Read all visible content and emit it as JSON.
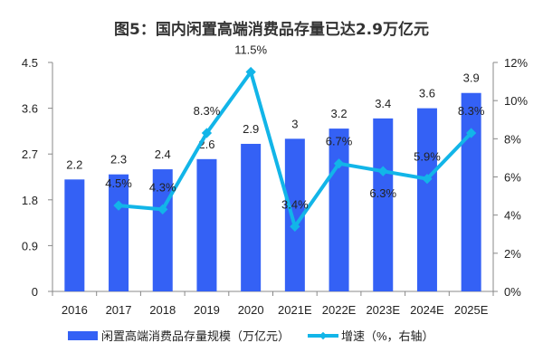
{
  "chart_data": {
    "type": "bar+line",
    "title": "图5：国内闲置高端消费品存量已达2.9万亿元",
    "categories": [
      "2016",
      "2017",
      "2018",
      "2019",
      "2020",
      "2021E",
      "2022E",
      "2023E",
      "2024E",
      "2025E"
    ],
    "series": [
      {
        "name": "闲置高端消费品存量规模（万亿元）",
        "type": "bar",
        "axis": "left",
        "color": "#3461f5",
        "values": [
          2.2,
          2.3,
          2.4,
          2.6,
          2.9,
          3,
          3.2,
          3.4,
          3.6,
          3.9
        ],
        "labels": [
          "2.2",
          "2.3",
          "2.4",
          "2.6",
          "2.9",
          "3",
          "3.2",
          "3.4",
          "3.6",
          "3.9"
        ]
      },
      {
        "name": "增速（%，右轴）",
        "type": "line",
        "axis": "right",
        "color": "#12b5e8",
        "values": [
          null,
          4.5,
          4.3,
          8.3,
          11.5,
          3.4,
          6.7,
          6.3,
          5.9,
          8.3
        ],
        "labels": [
          "",
          "4.5%",
          "4.3%",
          "8.3%",
          "11.5%",
          "3.4%",
          "6.7%",
          "6.3%",
          "5.9%",
          "8.3%"
        ]
      }
    ],
    "left_axis": {
      "ylim": [
        0,
        4.5
      ],
      "ticks": [
        "0",
        "0.9",
        "1.8",
        "2.7",
        "3.6",
        "4.5"
      ]
    },
    "right_axis": {
      "ylim": [
        0,
        12
      ],
      "ticks": [
        "0%",
        "2%",
        "4%",
        "6%",
        "8%",
        "10%",
        "12%"
      ]
    },
    "grid": false,
    "legend": "bottom"
  }
}
